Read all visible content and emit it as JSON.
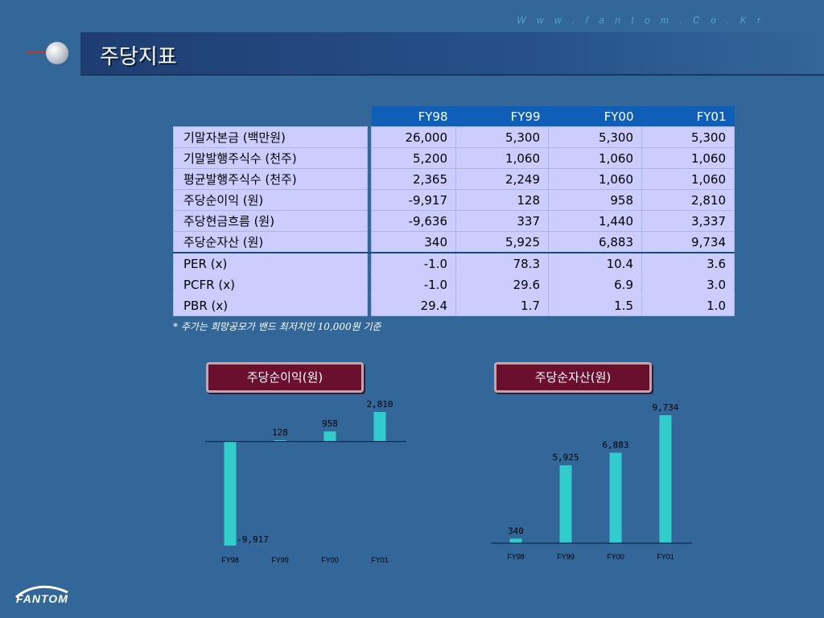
{
  "header": {
    "url": "W w w . f a n t o m . C o . K r",
    "title": "주당지표"
  },
  "table": {
    "columns": [
      "FY98",
      "FY99",
      "FY00",
      "FY01"
    ],
    "rows": [
      {
        "label": "기말자본금 (백만원)",
        "values": [
          "26,000",
          "5,300",
          "5,300",
          "5,300"
        ]
      },
      {
        "label": "기말발행주식수 (천주)",
        "values": [
          "5,200",
          "1,060",
          "1,060",
          "1,060"
        ]
      },
      {
        "label": "평균발행주식수 (천주)",
        "values": [
          "2,365",
          "2,249",
          "1,060",
          "1,060"
        ]
      },
      {
        "label": "주당순이익 (원)",
        "values": [
          "-9,917",
          "128",
          "958",
          "2,810"
        ]
      },
      {
        "label": "주당현금흐름 (원)",
        "values": [
          "-9,636",
          "337",
          "1,440",
          "3,337"
        ]
      },
      {
        "label": "주당순자산 (원)",
        "values": [
          "340",
          "5,925",
          "6,883",
          "9,734"
        ]
      },
      {
        "label": "PER (x)",
        "values": [
          "-1.0",
          "78.3",
          "10.4",
          "3.6"
        ]
      },
      {
        "label": "PCFR (x)",
        "values": [
          "-1.0",
          "29.6",
          "6.9",
          "3.0"
        ]
      },
      {
        "label": "PBR (x)",
        "values": [
          "29.4",
          "1.7",
          "1.5",
          "1.0"
        ]
      }
    ],
    "note": "* 주가는 희망공모가 밴드 최저치인 10,000원 기준"
  },
  "chart_data": [
    {
      "type": "bar",
      "title": "주당순이익(원)",
      "categories": [
        "FY98",
        "FY99",
        "FY00",
        "FY01"
      ],
      "values": [
        -9917,
        128,
        958,
        2810
      ],
      "value_labels": [
        "-9,917",
        "128",
        "958",
        "2,810"
      ],
      "ylim": [
        -9917,
        2810
      ],
      "bar_color": "#33cccc"
    },
    {
      "type": "bar",
      "title": "주당순자산(원)",
      "categories": [
        "FY98",
        "FY99",
        "FY00",
        "FY01"
      ],
      "values": [
        340,
        5925,
        6883,
        9734
      ],
      "value_labels": [
        "340",
        "5,925",
        "6,883",
        "9,734"
      ],
      "ylim": [
        0,
        9734
      ],
      "bar_color": "#33cccc"
    }
  ],
  "logo": {
    "text": "FANTOM"
  }
}
